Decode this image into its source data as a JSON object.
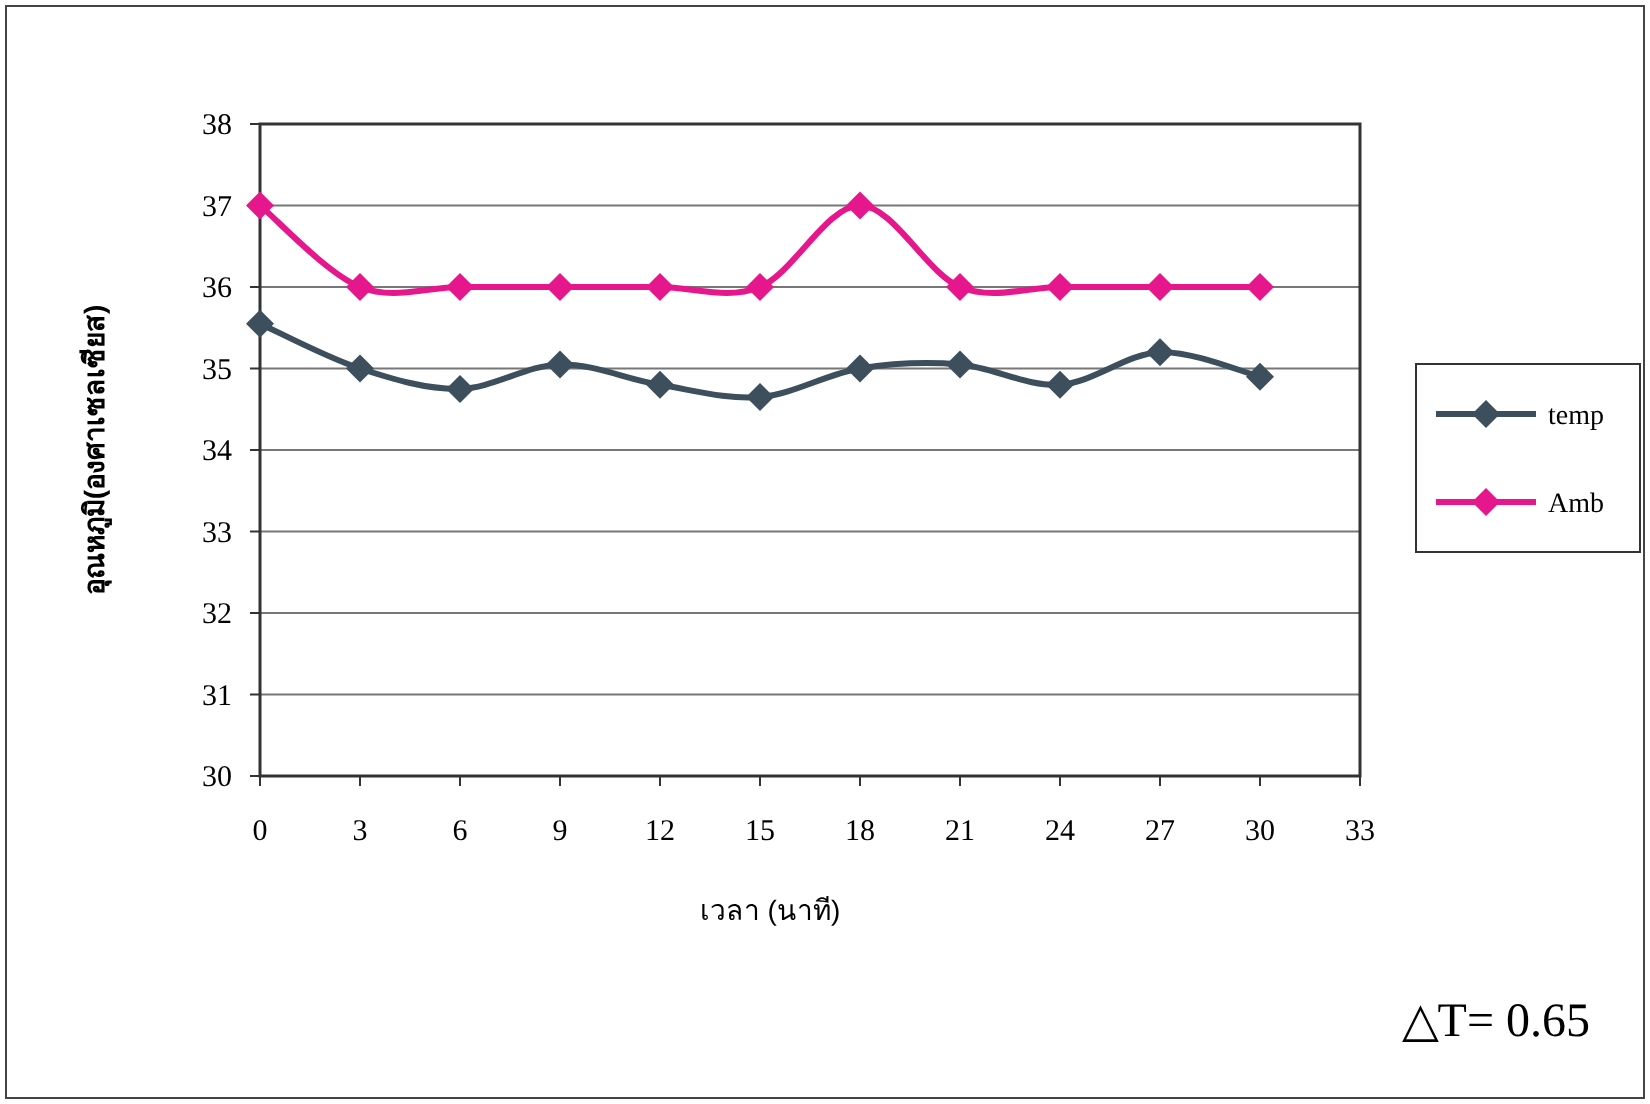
{
  "chart_data": {
    "type": "line",
    "x": [
      0,
      3,
      6,
      9,
      12,
      15,
      18,
      21,
      24,
      27,
      30
    ],
    "series": [
      {
        "name": "temp",
        "color": "#3d4f5c",
        "values": [
          35.55,
          35.0,
          34.75,
          35.05,
          34.8,
          34.65,
          35.0,
          35.05,
          34.8,
          35.2,
          34.9
        ]
      },
      {
        "name": "Amb",
        "color": "#e6168c",
        "values": [
          37,
          36,
          36,
          36,
          36,
          36,
          37,
          36,
          36,
          36,
          36
        ]
      }
    ],
    "xlim": [
      0,
      33
    ],
    "xticks": [
      0,
      3,
      6,
      9,
      12,
      15,
      18,
      21,
      24,
      27,
      30,
      33
    ],
    "ylim": [
      30,
      38
    ],
    "yticks": [
      30,
      31,
      32,
      33,
      34,
      35,
      36,
      37,
      38
    ],
    "xlabel": "เวลา (นาที)",
    "ylabel": "อุณหภูมิ(องศาเซลเซียส)",
    "annotations": [
      "△T= 0.65"
    ],
    "grid": "y",
    "legend": "right",
    "marker": "diamond",
    "line_style": "solid"
  }
}
